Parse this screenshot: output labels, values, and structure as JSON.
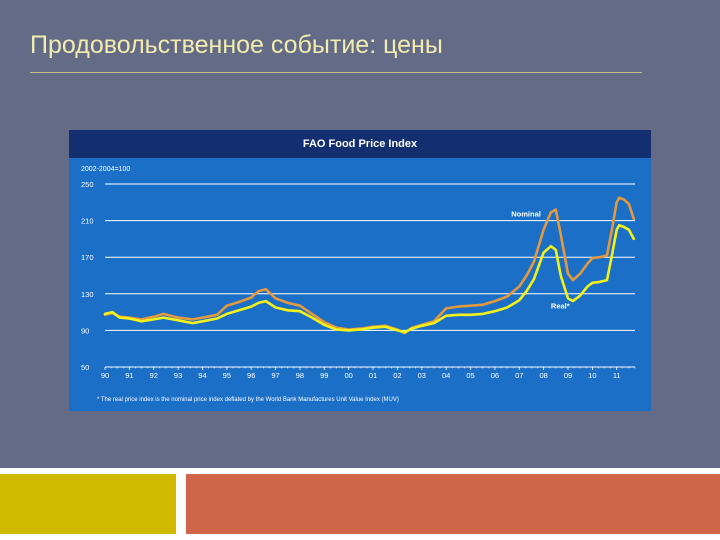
{
  "slide": {
    "title": "Продовольственное событие: цены"
  },
  "colors": {
    "slide_background": "#636b87",
    "title_text": "#f2ecae",
    "chart_header": "#132f6f",
    "chart_plot": "#1b6fc6",
    "nominal_line": "#e39a3f",
    "real_line": "#f3f11a",
    "footer_left": "#d1b900",
    "footer_right": "#cf6548"
  },
  "chart_data": {
    "type": "line",
    "title": "FAO Food Price Index",
    "unit_label": "2002-2004=100",
    "ylim": [
      50,
      250
    ],
    "yticks": [
      50,
      90,
      130,
      170,
      210,
      250
    ],
    "xlim": [
      1990,
      2011.75
    ],
    "x_tick_years": [
      1990,
      1991,
      1992,
      1993,
      1994,
      1995,
      1996,
      1997,
      1998,
      1999,
      2000,
      2001,
      2002,
      2003,
      2004,
      2005,
      2006,
      2007,
      2008,
      2009,
      2010,
      2011
    ],
    "x_tick_labels": [
      "90",
      "91",
      "92",
      "93",
      "94",
      "95",
      "96",
      "97",
      "98",
      "99",
      "00",
      "01",
      "02",
      "03",
      "04",
      "05",
      "06",
      "07",
      "08",
      "09",
      "10",
      "11"
    ],
    "grid": true,
    "footnote": "* The real price index is the nominal price index deflated by the World Bank Manufactures Unit Value Index (MUV)",
    "series": [
      {
        "name": "Nominal",
        "x": [
          1990,
          1990.3,
          1990.6,
          1991,
          1991.5,
          1992,
          1992.4,
          1993,
          1993.6,
          1994,
          1994.6,
          1995,
          1995.5,
          1996,
          1996.3,
          1996.6,
          1997,
          1997.5,
          1998,
          1998.5,
          1999,
          1999.5,
          2000,
          2000.5,
          2001,
          2001.5,
          2002,
          2002.3,
          2002.6,
          2003,
          2003.5,
          2004,
          2004.5,
          2005,
          2005.5,
          2006,
          2006.5,
          2007,
          2007.3,
          2007.6,
          2008,
          2008.3,
          2008.5,
          2008.7,
          2009,
          2009.2,
          2009.5,
          2009.8,
          2010,
          2010.3,
          2010.6,
          2010.8,
          2011,
          2011.1,
          2011.3,
          2011.5,
          2011.7
        ],
        "values": [
          107,
          109,
          105,
          104,
          102,
          105,
          108,
          104,
          102,
          104,
          107,
          117,
          121,
          126,
          133,
          135,
          125,
          120,
          117,
          108,
          99,
          93,
          91,
          92,
          94,
          95,
          91,
          87,
          93,
          96,
          100,
          114,
          116,
          117,
          118,
          122,
          127,
          138,
          150,
          165,
          200,
          219,
          222,
          195,
          152,
          145,
          152,
          163,
          169,
          170,
          172,
          200,
          230,
          235,
          233,
          228,
          212
        ]
      },
      {
        "name": "Real*",
        "x": [
          1990,
          1990.3,
          1990.6,
          1991,
          1991.5,
          1992,
          1992.4,
          1993,
          1993.6,
          1994,
          1994.6,
          1995,
          1995.5,
          1996,
          1996.3,
          1996.6,
          1997,
          1997.5,
          1998,
          1998.5,
          1999,
          1999.5,
          2000,
          2000.5,
          2001,
          2001.5,
          2002,
          2002.3,
          2002.6,
          2003,
          2003.5,
          2004,
          2004.5,
          2005,
          2005.5,
          2006,
          2006.5,
          2007,
          2007.3,
          2007.6,
          2008,
          2008.3,
          2008.5,
          2008.7,
          2009,
          2009.2,
          2009.5,
          2009.8,
          2010,
          2010.3,
          2010.6,
          2010.8,
          2011,
          2011.1,
          2011.3,
          2011.5,
          2011.7
        ],
        "values": [
          108,
          110,
          104,
          103,
          100,
          102,
          104,
          101,
          98,
          100,
          103,
          108,
          112,
          116,
          120,
          122,
          115,
          112,
          111,
          104,
          96,
          91,
          90,
          91,
          93,
          94,
          90,
          88,
          92,
          95,
          98,
          106,
          107,
          107,
          108,
          111,
          115,
          123,
          133,
          146,
          175,
          182,
          178,
          150,
          125,
          122,
          128,
          138,
          142,
          143,
          145,
          172,
          200,
          205,
          203,
          200,
          190
        ]
      }
    ],
    "annotations": [
      {
        "text": "Nominal",
        "series": "Nominal"
      },
      {
        "text": "Real*",
        "series": "Real*"
      }
    ]
  }
}
